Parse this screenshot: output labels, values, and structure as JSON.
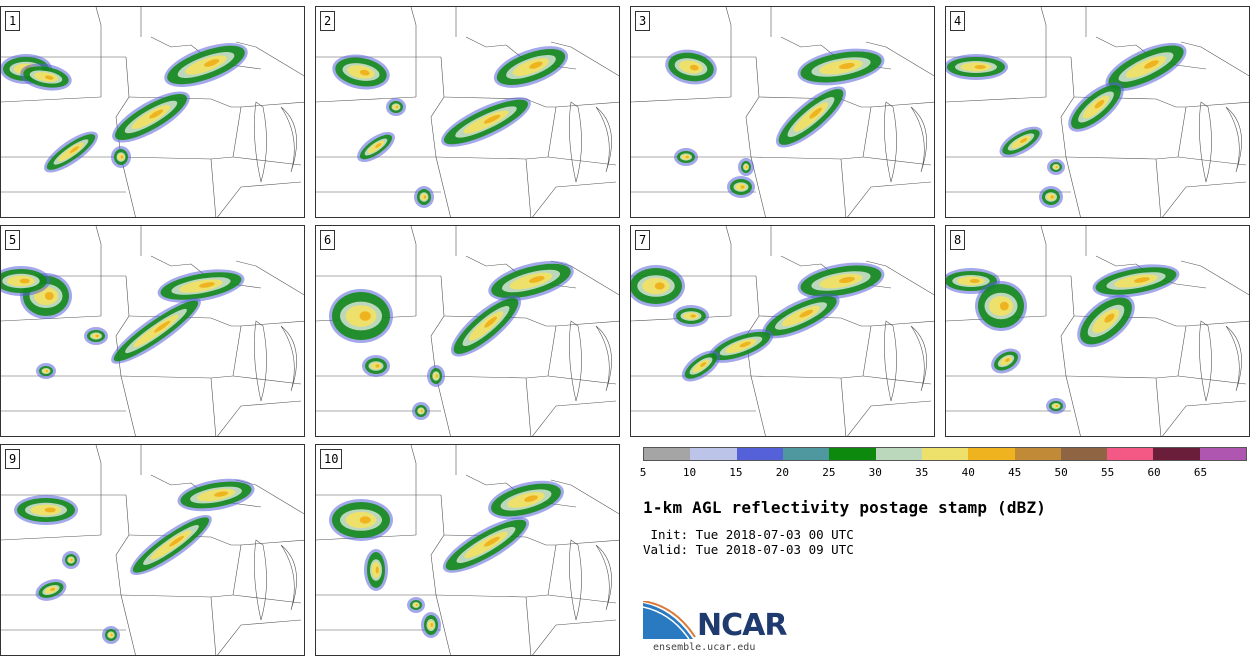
{
  "panels": [
    {
      "label": "1"
    },
    {
      "label": "2"
    },
    {
      "label": "3"
    },
    {
      "label": "4"
    },
    {
      "label": "5"
    },
    {
      "label": "6"
    },
    {
      "label": "7"
    },
    {
      "label": "8"
    },
    {
      "label": "9"
    },
    {
      "label": "10"
    }
  ],
  "colorbar": {
    "colors": [
      "#a5a5a5",
      "#bcc4ea",
      "#5561d8",
      "#5098a0",
      "#0d8a0d",
      "#bcd8bc",
      "#ede16c",
      "#efb31f",
      "#c08a36",
      "#8f6443",
      "#f45885",
      "#6b1e3a",
      "#af56b0"
    ],
    "ticks": [
      "5",
      "10",
      "15",
      "20",
      "25",
      "30",
      "35",
      "40",
      "45",
      "50",
      "55",
      "60",
      "65"
    ]
  },
  "title": "1-km AGL reflectivity postage stamp (dBZ)",
  "init": " Init: Tue 2018-07-03 00 UTC",
  "valid": "Valid: Tue 2018-07-03 09 UTC",
  "logo": {
    "text": "NCAR",
    "url": "ensemble.ucar.edu"
  }
}
